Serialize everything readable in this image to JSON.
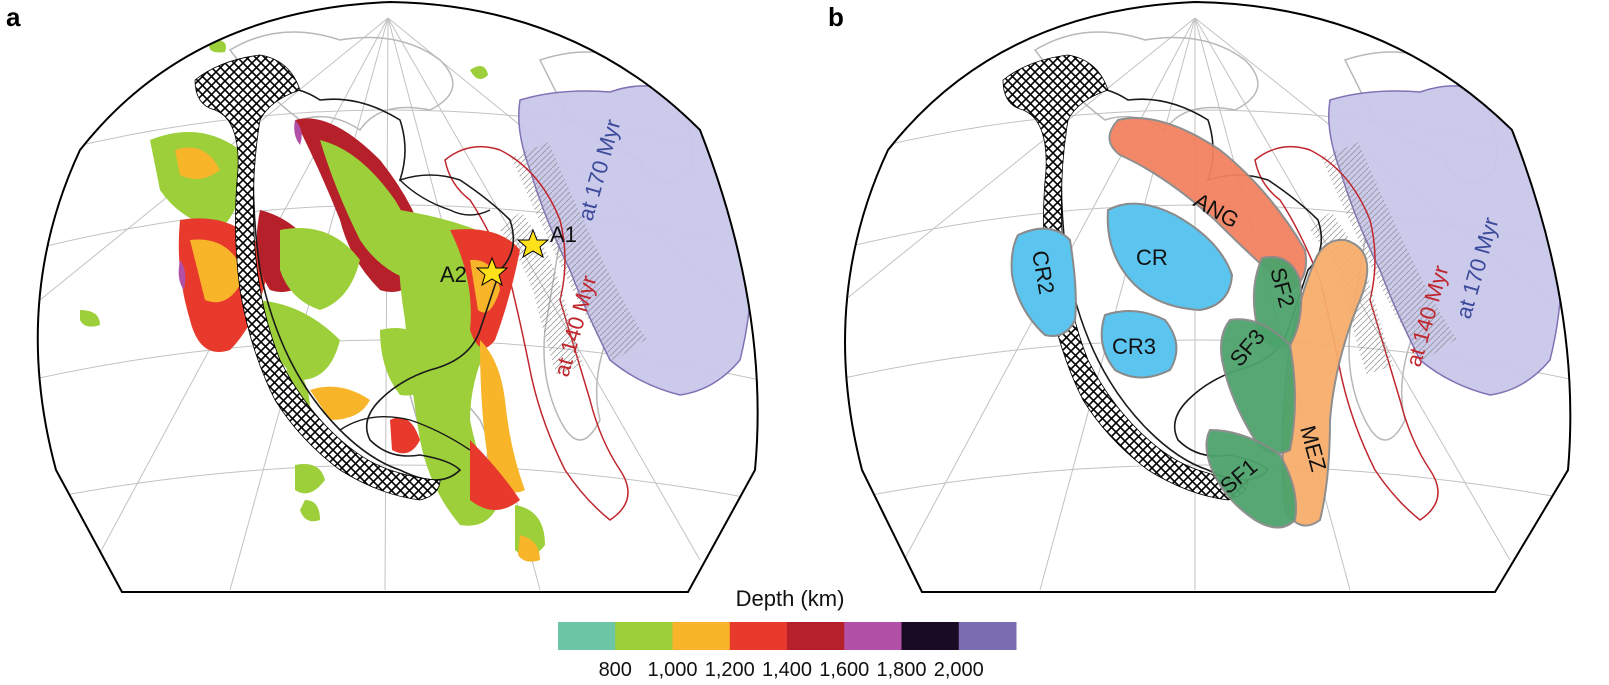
{
  "panels": {
    "a": {
      "letter": "a",
      "labels": {
        "at170": "at 170 Myr",
        "at140": "at 140 Myr",
        "a1": "A1",
        "a2": "A2"
      }
    },
    "b": {
      "letter": "b",
      "labels": {
        "at170": "at 170 Myr",
        "at140": "at 140 Myr"
      },
      "regions": {
        "ang": "ANG",
        "cr": "CR",
        "cr2": "CR2",
        "cr3": "CR3",
        "sf1": "SF1",
        "sf2": "SF2",
        "sf3": "SF3",
        "mez": "MEZ"
      }
    }
  },
  "colors": {
    "teal": "#6cc5a4",
    "green": "#9ccf3a",
    "yellow": "#f8b52a",
    "red": "#e73a2c",
    "darkred": "#b5202b",
    "magenta": "#b24fa6",
    "black": "#1a0b24",
    "purple": "#7b6bb1",
    "blue_label": "#3b4a9a",
    "red_label": "#c0262d",
    "lavender": "#c9c8ea",
    "cr_blue": "#5bc4ef",
    "ang_orange": "#f2825f",
    "mez_orange": "#f6ad6c",
    "sf_green": "#4da36c"
  },
  "colorbar": {
    "title": "Depth (km)",
    "colors": [
      "#6cc5a4",
      "#9ccf3a",
      "#f8b52a",
      "#e73a2c",
      "#b5202b",
      "#b24fa6",
      "#1a0b24",
      "#7b6bb1"
    ],
    "ticks": [
      "800",
      "1,000",
      "1,200",
      "1,400",
      "1,600",
      "1,800",
      "2,000"
    ]
  }
}
